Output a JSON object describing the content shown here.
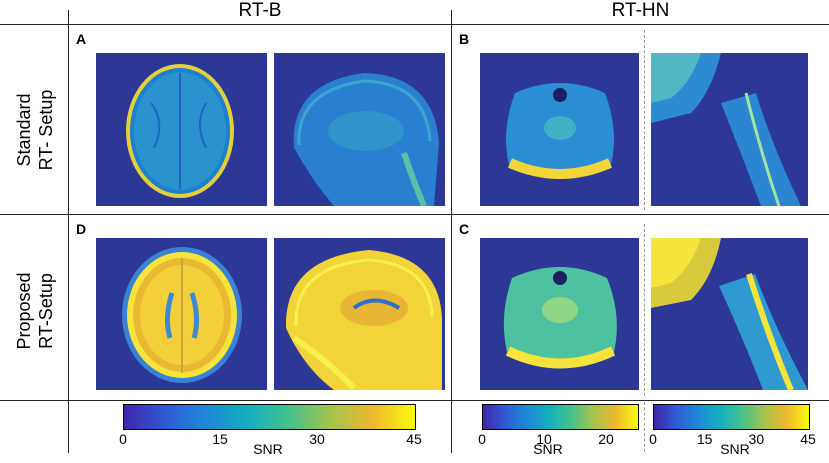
{
  "columns": {
    "left": "RT-B",
    "right": "RT-HN"
  },
  "rows": {
    "top": [
      "Standard",
      "RT- Setup"
    ],
    "bottom": [
      "Proposed",
      "RT-Setup"
    ]
  },
  "panels": {
    "a": "A",
    "b": "B",
    "c": "C",
    "d": "D"
  },
  "colorbars": [
    {
      "label": "SNR",
      "ticks": [
        "0",
        "15",
        "30",
        "45"
      ],
      "values": [
        0,
        15,
        30,
        45
      ],
      "min": 0,
      "max": 45
    },
    {
      "label": "SNR",
      "ticks": [
        "0",
        "10",
        "20"
      ],
      "values": [
        0,
        10,
        20
      ],
      "min": 0,
      "max": 25
    },
    {
      "label": "SNR",
      "ticks": [
        "0",
        "15",
        "30",
        "45"
      ],
      "values": [
        0,
        15,
        30,
        45
      ],
      "min": 0,
      "max": 45
    }
  ],
  "colormap": [
    "#3e26a8",
    "#2f5bd5",
    "#1d8ad8",
    "#14b0be",
    "#47c28a",
    "#a6c34b",
    "#f0b82f",
    "#f9fb0e"
  ]
}
